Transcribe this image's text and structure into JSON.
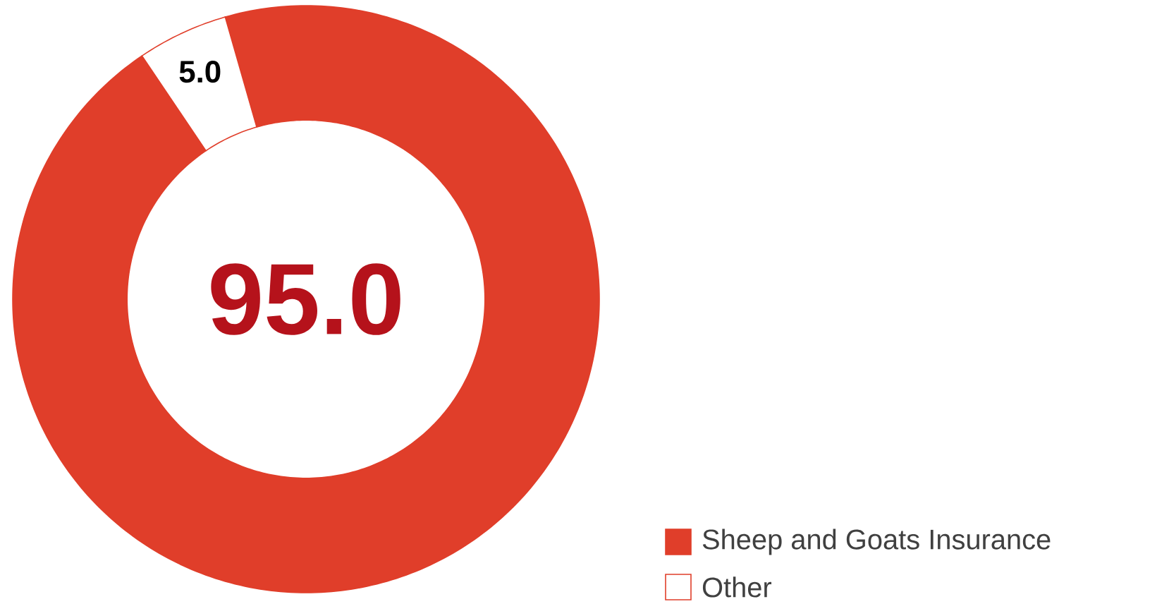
{
  "chart_data": {
    "type": "donut",
    "categories": [
      "Sheep and Goats Insurance",
      "Other"
    ],
    "values": [
      95.0,
      5.0
    ],
    "colors": [
      "#e03e2a",
      "#ffffff"
    ],
    "value_labels": [
      "95.0",
      "5.0"
    ],
    "legend": "bottom right"
  }
}
